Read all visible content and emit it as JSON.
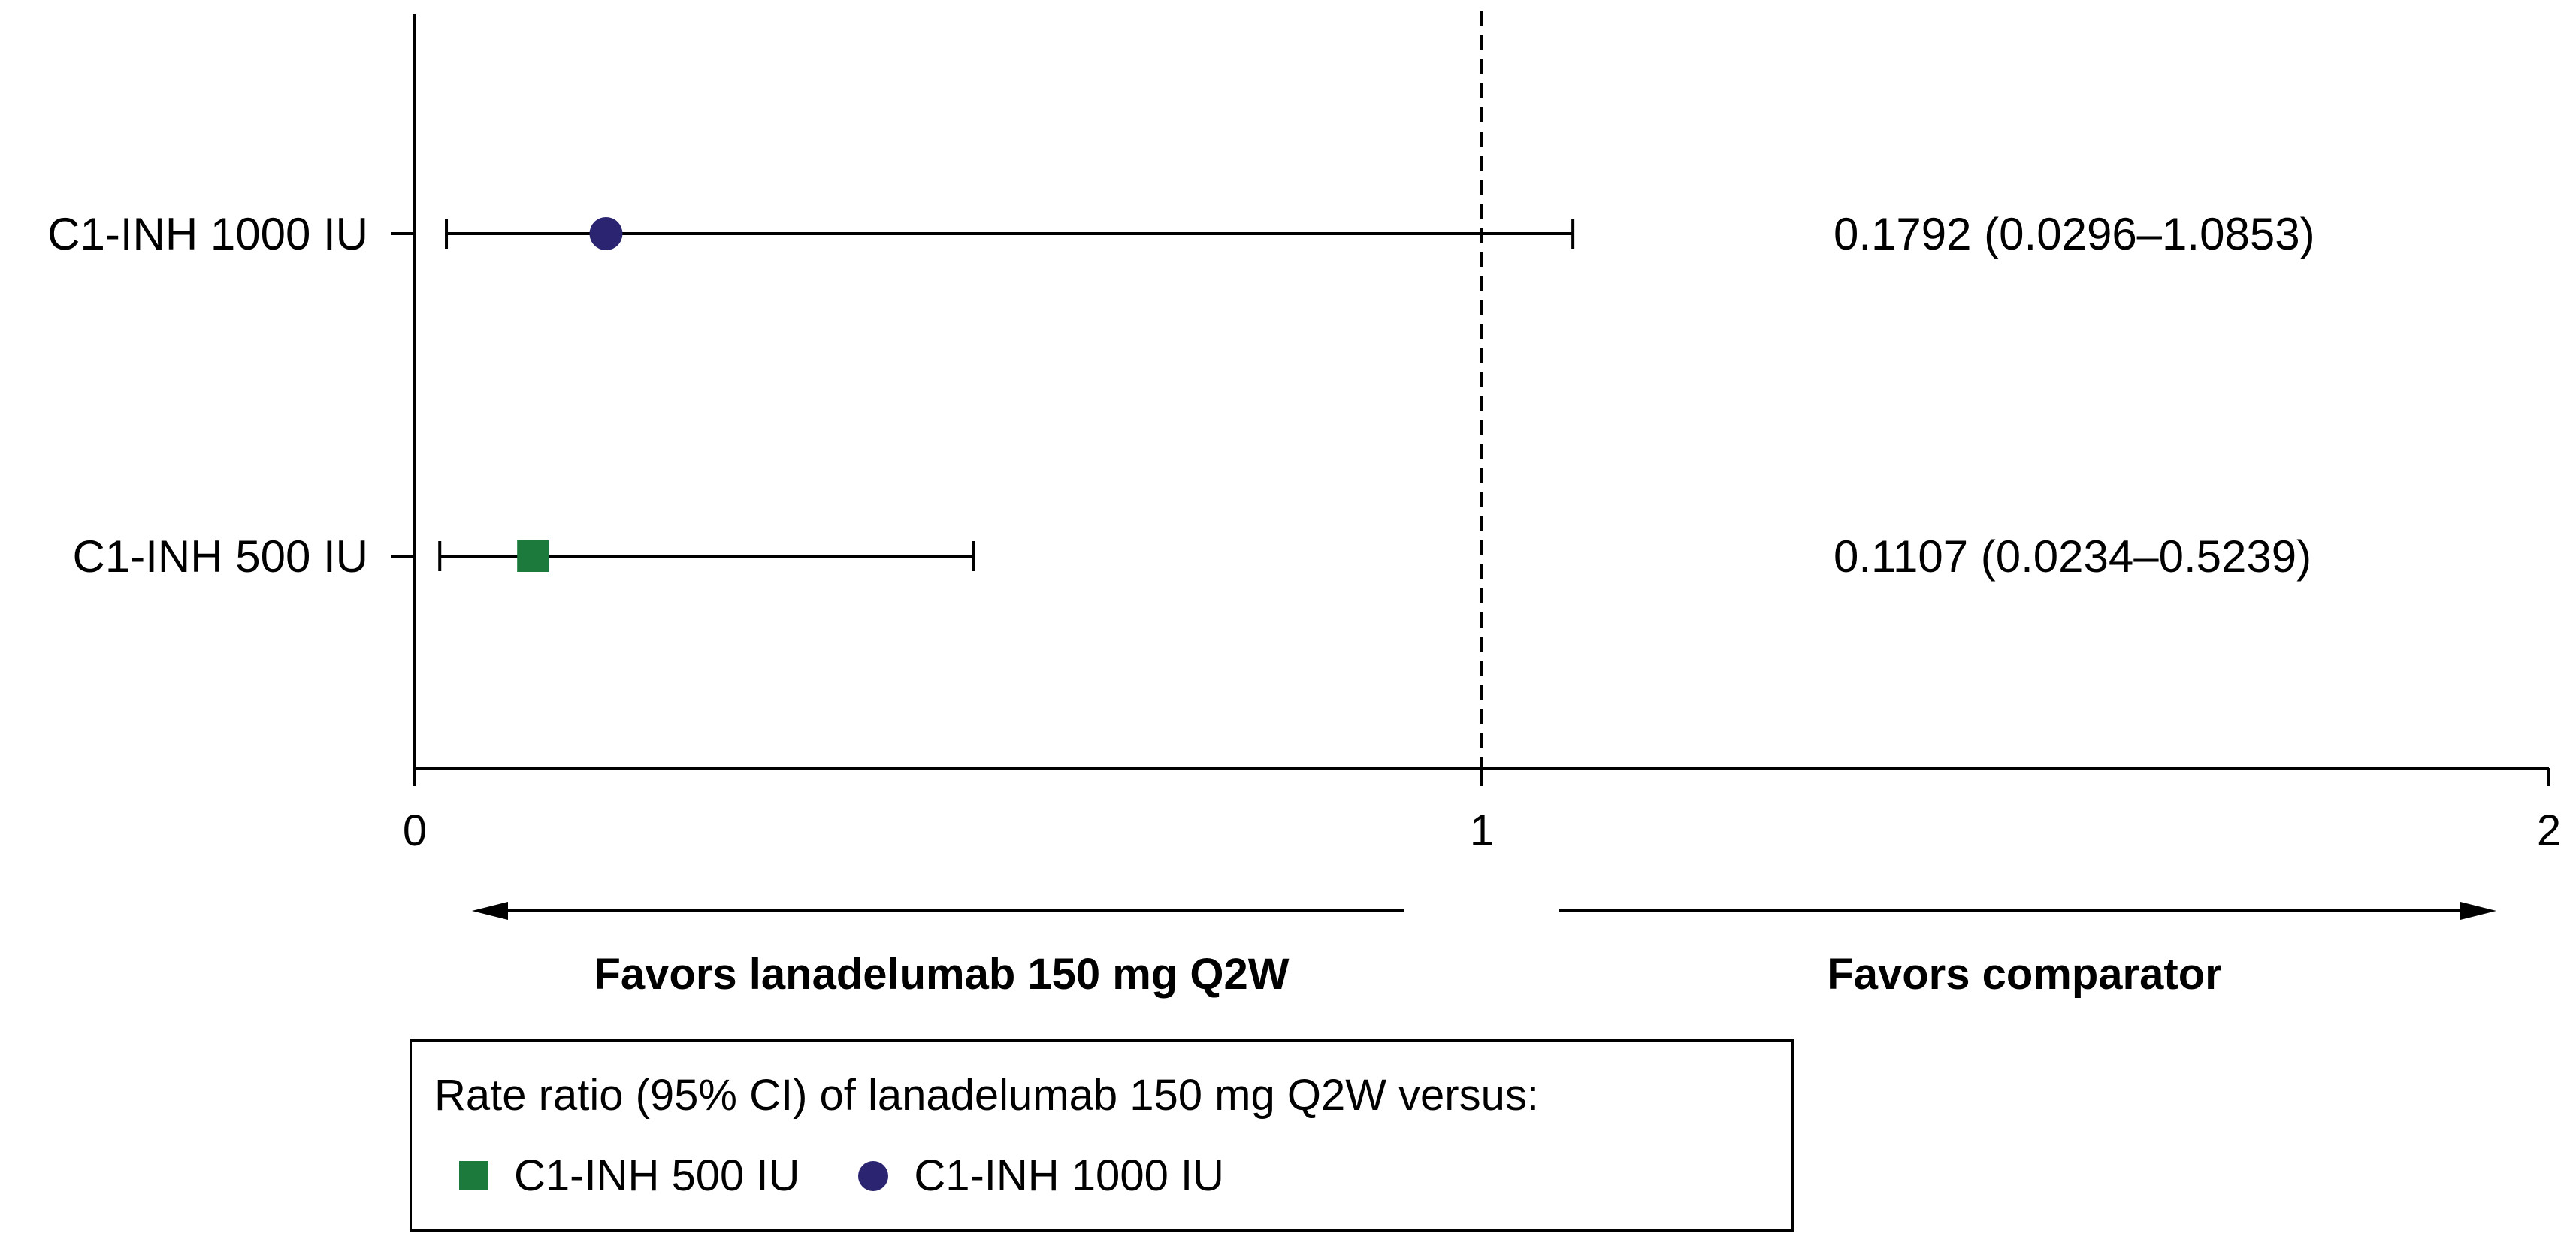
{
  "chart_data": {
    "type": "forest",
    "xlim": [
      0,
      2
    ],
    "x_ticks": [
      "0",
      "1",
      "2"
    ],
    "reference_line": 1,
    "grid": false,
    "series": [
      {
        "name": "C1-INH 1000 IU",
        "label": "C1-INH 1000 IU",
        "estimate": 0.1792,
        "ci_low": 0.0296,
        "ci_high": 1.0853,
        "text": "0.1792 (0.0296–1.0853)",
        "marker": "circle",
        "color": "#2b2470"
      },
      {
        "name": "C1-INH 500 IU",
        "label": "C1-INH 500 IU",
        "estimate": 0.1107,
        "ci_low": 0.0234,
        "ci_high": 0.5239,
        "text": "0.1107 (0.0234–0.5239)",
        "marker": "square",
        "color": "#1b7a3c"
      }
    ],
    "direction_labels": {
      "left": "Favors lanadelumab 150 mg Q2W",
      "right": "Favors comparator"
    },
    "legend": {
      "title": "Rate ratio (95% CI) of lanadelumab 150 mg Q2W versus:",
      "placement": "bottom-center",
      "items": [
        {
          "label": "C1-INH 500 IU",
          "marker": "square",
          "color": "#1b7a3c"
        },
        {
          "label": "C1-INH 1000 IU",
          "marker": "circle",
          "color": "#2b2470"
        }
      ]
    }
  }
}
